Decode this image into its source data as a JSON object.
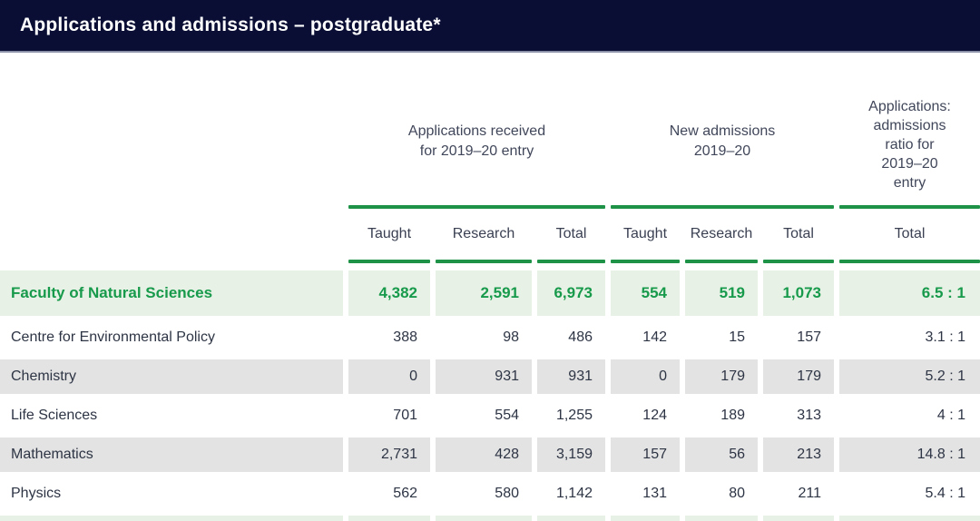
{
  "title_bar": {
    "title": "Applications and admissions – postgraduate*",
    "bg_color": "#0a0e34",
    "text_color": "#ffffff"
  },
  "colors": {
    "accent_green": "#1e9347",
    "highlight_row_bg": "#e8f1e5",
    "highlight_row_text": "#179a4b",
    "alt_row_bg": "#e3e3e3",
    "body_text": "#2d3444"
  },
  "table": {
    "groups": {
      "applications": "Applications received\nfor 2019–20 entry",
      "admissions": "New admissions\n2019–20",
      "ratio": "Applications:\nadmissions\nratio for\n2019–20\nentry"
    },
    "subheaders": [
      "Taught",
      "Research",
      "Total",
      "Taught",
      "Research",
      "Total",
      "Total"
    ],
    "rows": [
      {
        "label": "Faculty of Natural Sciences",
        "highlight": true,
        "cells": [
          "4,382",
          "2,591",
          "6,973",
          "554",
          "519",
          "1,073",
          "6.5 : 1"
        ]
      },
      {
        "label": "Centre for Environmental Policy",
        "highlight": false,
        "cells": [
          "388",
          "98",
          "486",
          "142",
          "15",
          "157",
          "3.1 : 1"
        ]
      },
      {
        "label": "Chemistry",
        "highlight": false,
        "cells": [
          "0",
          "931",
          "931",
          "0",
          "179",
          "179",
          "5.2 : 1"
        ]
      },
      {
        "label": "Life Sciences",
        "highlight": false,
        "cells": [
          "701",
          "554",
          "1,255",
          "124",
          "189",
          "313",
          "4 : 1"
        ]
      },
      {
        "label": "Mathematics",
        "highlight": false,
        "cells": [
          "2,731",
          "428",
          "3,159",
          "157",
          "56",
          "213",
          "14.8 : 1"
        ]
      },
      {
        "label": "Physics",
        "highlight": false,
        "cells": [
          "562",
          "580",
          "1,142",
          "131",
          "80",
          "211",
          "5.4 : 1"
        ]
      }
    ]
  }
}
